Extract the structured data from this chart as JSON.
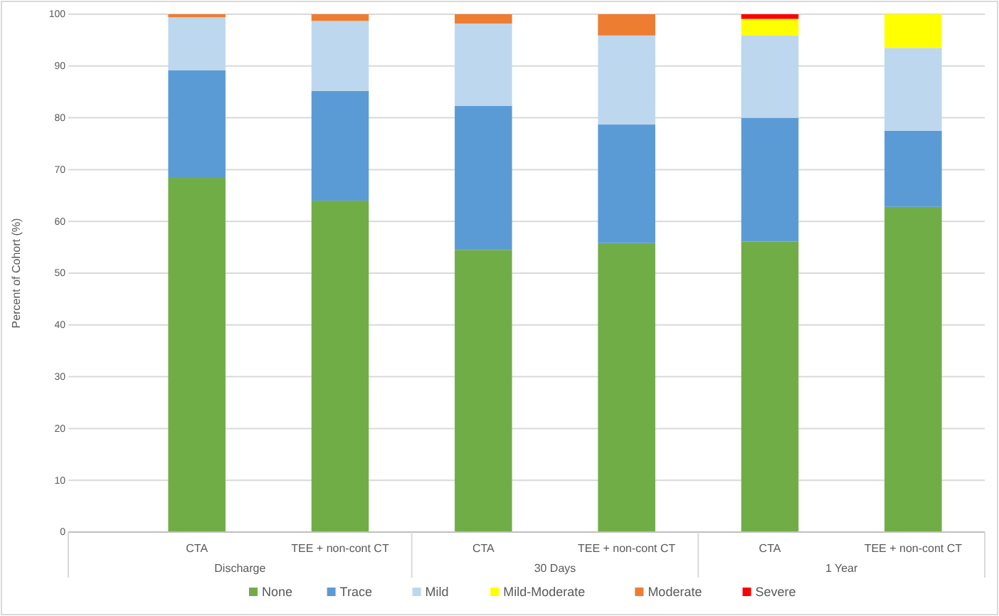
{
  "chart_data": {
    "type": "bar",
    "stacked": true,
    "ylabel": "Percent of Cohort (%)",
    "categories": [
      "CTA",
      "TEE + non-cont CT",
      "CTA",
      "TEE + non-cont CT",
      "CTA",
      "TEE + non-cont CT"
    ],
    "annotations": [
      "Discharge",
      "30 Days",
      "1 Year"
    ],
    "series": [
      {
        "name": "None",
        "color": "#70ad47",
        "values": [
          68.4,
          64.0,
          54.5,
          55.8,
          56.1,
          62.8
        ]
      },
      {
        "name": "Trace",
        "color": "#5b9bd5",
        "values": [
          20.8,
          21.2,
          27.8,
          22.9,
          23.9,
          14.7
        ]
      },
      {
        "name": "Mild",
        "color": "#bdd7ee",
        "values": [
          10.2,
          13.5,
          15.9,
          17.2,
          15.9,
          16.0
        ]
      },
      {
        "name": "Mild-Moderate",
        "color": "#ffff00",
        "values": [
          0,
          0,
          0,
          0,
          3.2,
          6.5
        ]
      },
      {
        "name": "Moderate",
        "color": "#ed7d31",
        "values": [
          0.6,
          1.3,
          1.8,
          4.1,
          0,
          0
        ]
      },
      {
        "name": "Severe",
        "color": "#ff0000",
        "values": [
          0,
          0,
          0,
          0,
          0.9,
          0
        ]
      }
    ],
    "ylim": [
      0,
      100
    ],
    "yticks": [
      0,
      10,
      20,
      30,
      40,
      50,
      60,
      70,
      80,
      90,
      100
    ],
    "grid": "y",
    "legend": "bottom"
  }
}
